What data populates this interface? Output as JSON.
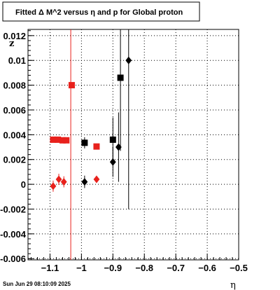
{
  "chart_data": {
    "type": "scatter",
    "title": "Fitted Δ M^2 versus η and p for Global proton",
    "xlabel": "η",
    "ylabel": "z",
    "xlim": [
      -1.17,
      -0.5
    ],
    "ylim": [
      -0.0061,
      0.0125
    ],
    "x_ticks": [
      -1.1,
      -1,
      -0.9,
      -0.8,
      -0.7,
      -0.6,
      -0.5
    ],
    "x_tick_labels": [
      "−1.1",
      "−1",
      "−0.9",
      "−0.8",
      "−0.7",
      "−0.6",
      "−0.5"
    ],
    "y_ticks": [
      -0.006,
      -0.004,
      -0.002,
      0,
      0.002,
      0.004,
      0.006,
      0.008,
      0.01,
      0.012
    ],
    "y_tick_labels": [
      "-0.006",
      "-0.004",
      "-0.002",
      "0",
      "0.002",
      "0.004",
      "0.006",
      "0.008",
      "0.01",
      "0.012"
    ],
    "grid": true,
    "vertical_line": {
      "x": -1.034,
      "color": "#e8211c"
    },
    "series": [
      {
        "marker": "square",
        "color": "#e8211c",
        "points": [
          {
            "x": -1.09,
            "y": 0.0036,
            "xerr": 0.008,
            "yerr": 0.0001
          },
          {
            "x": -1.075,
            "y": 0.0036,
            "xerr": 0.008,
            "yerr": 0.0001
          },
          {
            "x": -1.06,
            "y": 0.00355,
            "xerr": 0.008,
            "yerr": 0.0001
          },
          {
            "x": -1.048,
            "y": 0.00355,
            "xerr": 0.008,
            "yerr": 0.0001
          },
          {
            "x": -1.031,
            "y": 0.008,
            "xerr": 0.0,
            "yerr": 0.0001
          },
          {
            "x": -0.952,
            "y": 0.00305,
            "xerr": 0.0,
            "yerr": 0.0002
          }
        ]
      },
      {
        "marker": "diamond",
        "color": "#e8211c",
        "points": [
          {
            "x": -1.09,
            "y": -0.00015,
            "yerr": 0.00045
          },
          {
            "x": -1.072,
            "y": 0.0004,
            "yerr": 0.00045
          },
          {
            "x": -1.056,
            "y": 0.0002,
            "yerr": 0.00045
          },
          {
            "x": -0.952,
            "y": 0.0004,
            "yerr": 0.00025
          }
        ]
      },
      {
        "marker": "square",
        "color": "#000000",
        "points": [
          {
            "x": -0.99,
            "y": 0.00335,
            "yerr": 0.00045
          },
          {
            "x": -0.9,
            "y": 0.0036,
            "yerr": 0.0018
          },
          {
            "x": -0.876,
            "y": 0.0086,
            "yerr": 0.0059
          }
        ]
      },
      {
        "marker": "diamond",
        "color": "#000000",
        "points": [
          {
            "x": -0.99,
            "y": 0.0002,
            "yerr": 0.0005
          },
          {
            "x": -0.9,
            "y": 0.0018,
            "yerr": 0.0012
          },
          {
            "x": -0.882,
            "y": 0.003,
            "yerr": 0.0028
          },
          {
            "x": -0.85,
            "y": 0.01,
            "yerr": 0.012
          }
        ]
      }
    ]
  },
  "footer": {
    "timestamp": "Sun Jun 29 08:10:09 2025"
  },
  "colors": {
    "red": "#e8211c",
    "black": "#000000"
  }
}
